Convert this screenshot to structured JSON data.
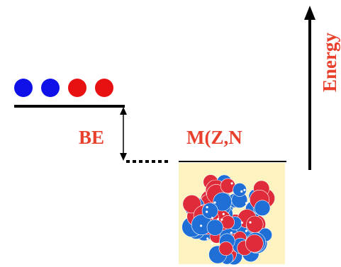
{
  "labels": {
    "binding_energy": "BE",
    "nucleus_mass": "M(Z,N",
    "energy_axis": "Energy"
  },
  "particles": [
    {
      "kind": "neutron",
      "color": "#1010e8"
    },
    {
      "kind": "neutron",
      "color": "#1010e8"
    },
    {
      "kind": "proton",
      "color": "#e81010"
    },
    {
      "kind": "proton",
      "color": "#e81010"
    }
  ],
  "colors": {
    "label": "#e8402c",
    "line": "#000000",
    "nucleus_background": "#fdf3c0",
    "nucleus_blue": "#1f6fd6",
    "nucleus_red": "#e02b3a"
  }
}
